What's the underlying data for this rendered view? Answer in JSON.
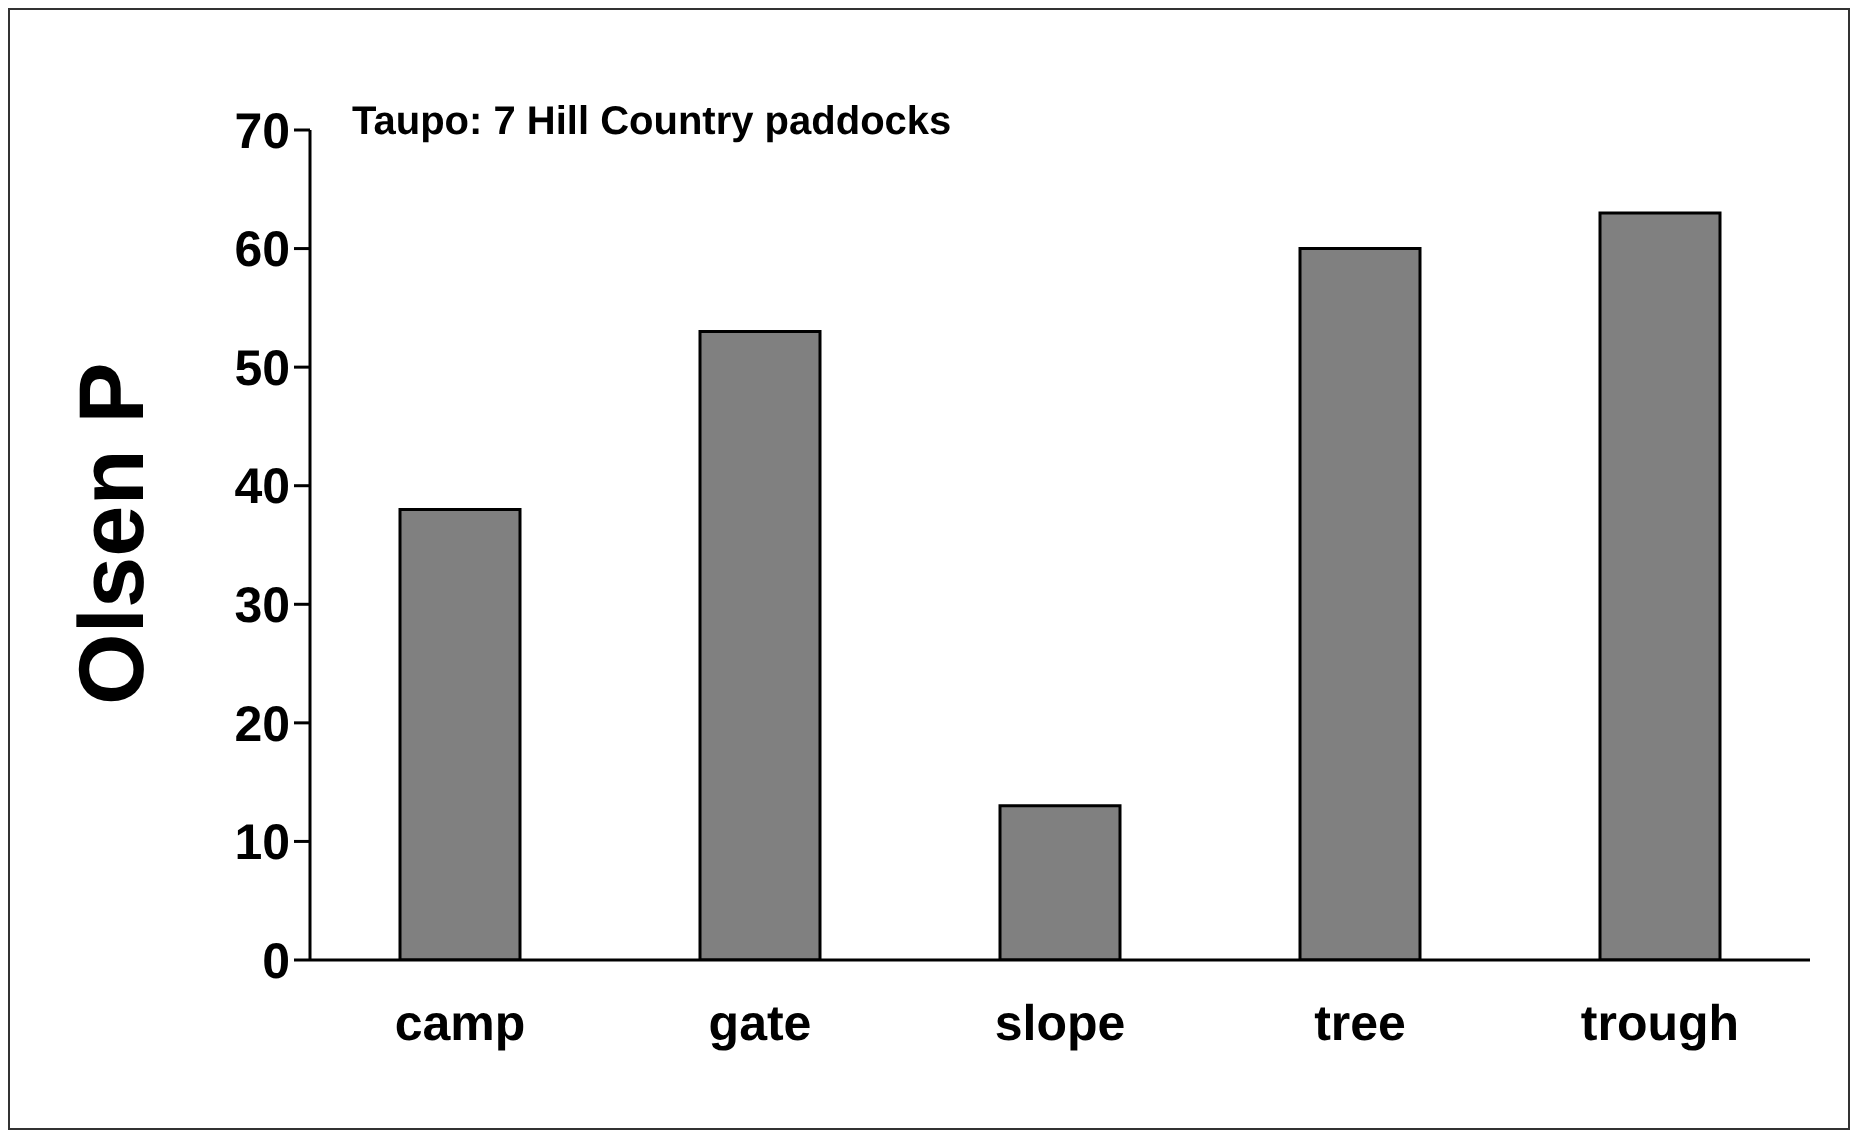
{
  "chart_data": {
    "type": "bar",
    "title": "Taupo: 7 Hill Country paddocks",
    "ylabel": "Olsen P",
    "categories": [
      "camp",
      "gate",
      "slope",
      "tree",
      "trough"
    ],
    "values": [
      38,
      53,
      13,
      60,
      63
    ],
    "color": "#808080",
    "ylim": [
      0,
      70
    ],
    "yticks": [
      0,
      10,
      20,
      30,
      40,
      50,
      60,
      70
    ]
  }
}
